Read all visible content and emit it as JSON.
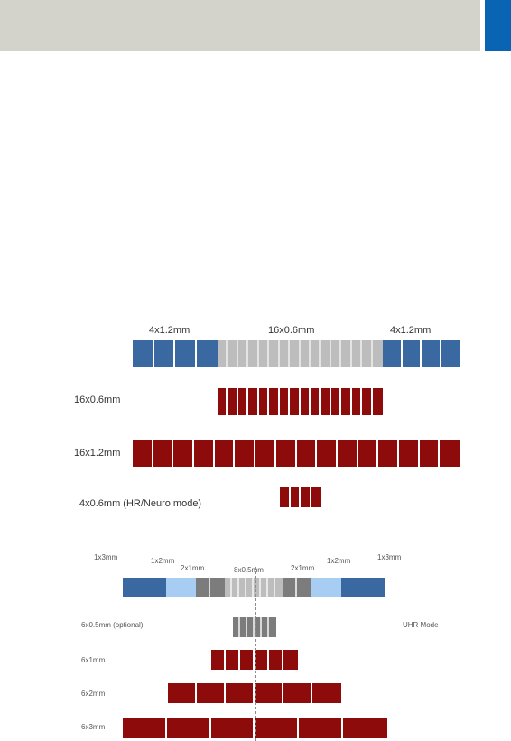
{
  "colors": {
    "header_bg": "#d3d3cb",
    "header_accent": "#0a64b4",
    "blue": "#3a68a1",
    "light_blue": "#a8cdf3",
    "dark_gray": "#7c7c7c",
    "light_gray": "#bdbdbd",
    "red": "#8e0b0b"
  },
  "diagram1": {
    "top_labels": [
      "4x1.2mm",
      "16x0.6mm",
      "4x1.2mm"
    ],
    "modes": [
      "16x0.6mm",
      "16x1.2mm",
      "4x0.6mm (HR/Neuro mode)"
    ]
  },
  "diagram2": {
    "top_labels": [
      "1x3mm",
      "1x2mm",
      "2x1mm",
      "8x0.5mm",
      "2x1mm",
      "1x2mm",
      "1x3mm"
    ],
    "modes": [
      "6x0.5mm (optional)",
      "6x1mm",
      "6x2mm",
      "6x3mm"
    ],
    "side_label": "UHR Mode"
  }
}
